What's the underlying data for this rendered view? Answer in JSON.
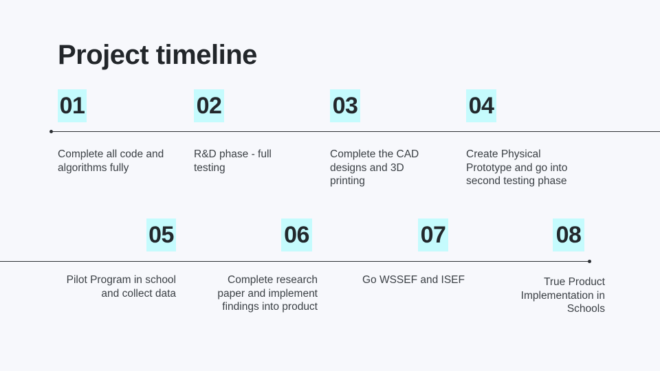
{
  "title": "Project timeline",
  "steps": [
    {
      "number": "01",
      "text": "Complete all code and algorithms fully"
    },
    {
      "number": "02",
      "text": "R&D phase - full testing"
    },
    {
      "number": "03",
      "text": "Complete the CAD designs and 3D printing"
    },
    {
      "number": "04",
      "text": "Create Physical Prototype and go into second testing phase"
    },
    {
      "number": "05",
      "text": "Pilot Program in school and collect data"
    },
    {
      "number": "06",
      "text": "Complete research paper and implement findings into product"
    },
    {
      "number": "07",
      "text": "Go WSSEF and ISEF"
    },
    {
      "number": "08",
      "text": "True Product Implementation in Schools"
    }
  ],
  "colors": {
    "highlight": "#c5fbfd",
    "background": "#f7f8fc",
    "text": "#262a2e"
  }
}
